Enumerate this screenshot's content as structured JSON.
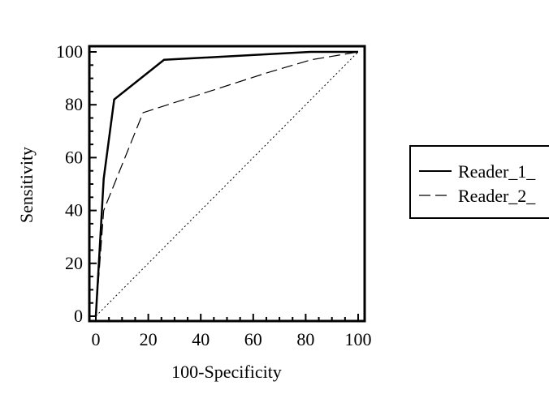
{
  "chart_data": {
    "type": "line",
    "title": "",
    "xlabel": "100-Specificity",
    "ylabel": "Sensitivity",
    "xlim": [
      0,
      100
    ],
    "ylim": [
      0,
      100
    ],
    "x_ticks": [
      0,
      20,
      40,
      60,
      80,
      100
    ],
    "y_ticks": [
      0,
      20,
      40,
      60,
      80,
      100
    ],
    "x_tick_labels": [
      "0",
      "20",
      "40",
      "60",
      "80",
      "100"
    ],
    "y_tick_labels": [
      "0",
      "20",
      "40",
      "60",
      "80",
      "100"
    ],
    "grid": false,
    "legend_position": "right",
    "series": [
      {
        "name": "Reader_1_",
        "style": "solid",
        "color": "#000000",
        "x": [
          0,
          3,
          7,
          26,
          82,
          100
        ],
        "y": [
          0,
          52,
          82,
          97,
          100,
          100
        ]
      },
      {
        "name": "Reader_2_",
        "style": "dashed",
        "color": "#000000",
        "x": [
          0,
          3,
          18,
          65,
          82,
          100
        ],
        "y": [
          0,
          40,
          77,
          92,
          97,
          100
        ]
      }
    ],
    "reference_line": {
      "style": "dotted",
      "x": [
        0,
        100
      ],
      "y": [
        0,
        100
      ]
    }
  }
}
